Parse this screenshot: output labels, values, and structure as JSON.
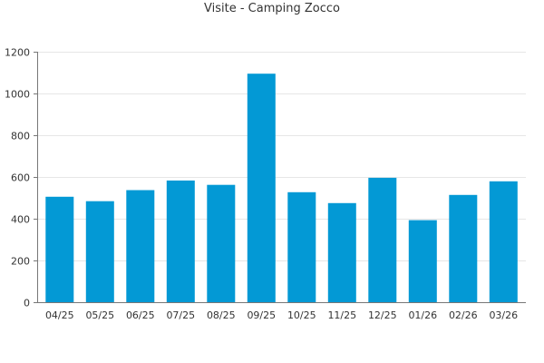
{
  "chart_data": {
    "type": "bar",
    "title": "Visite - Camping Zocco",
    "xlabel": "",
    "ylabel": "",
    "categories": [
      "04/25",
      "05/25",
      "06/25",
      "07/25",
      "08/25",
      "09/25",
      "10/25",
      "11/25",
      "12/25",
      "01/26",
      "02/26",
      "03/26"
    ],
    "values": [
      505,
      484,
      537,
      583,
      562,
      1095,
      527,
      475,
      596,
      393,
      514,
      579
    ],
    "ylim": [
      0,
      1200
    ],
    "yticks": [
      0,
      200,
      400,
      600,
      800,
      1000,
      1200
    ],
    "grid": true,
    "bar_color": "#0399d5",
    "grid_color": "#e6e6e6",
    "axis_color": "#777777"
  }
}
